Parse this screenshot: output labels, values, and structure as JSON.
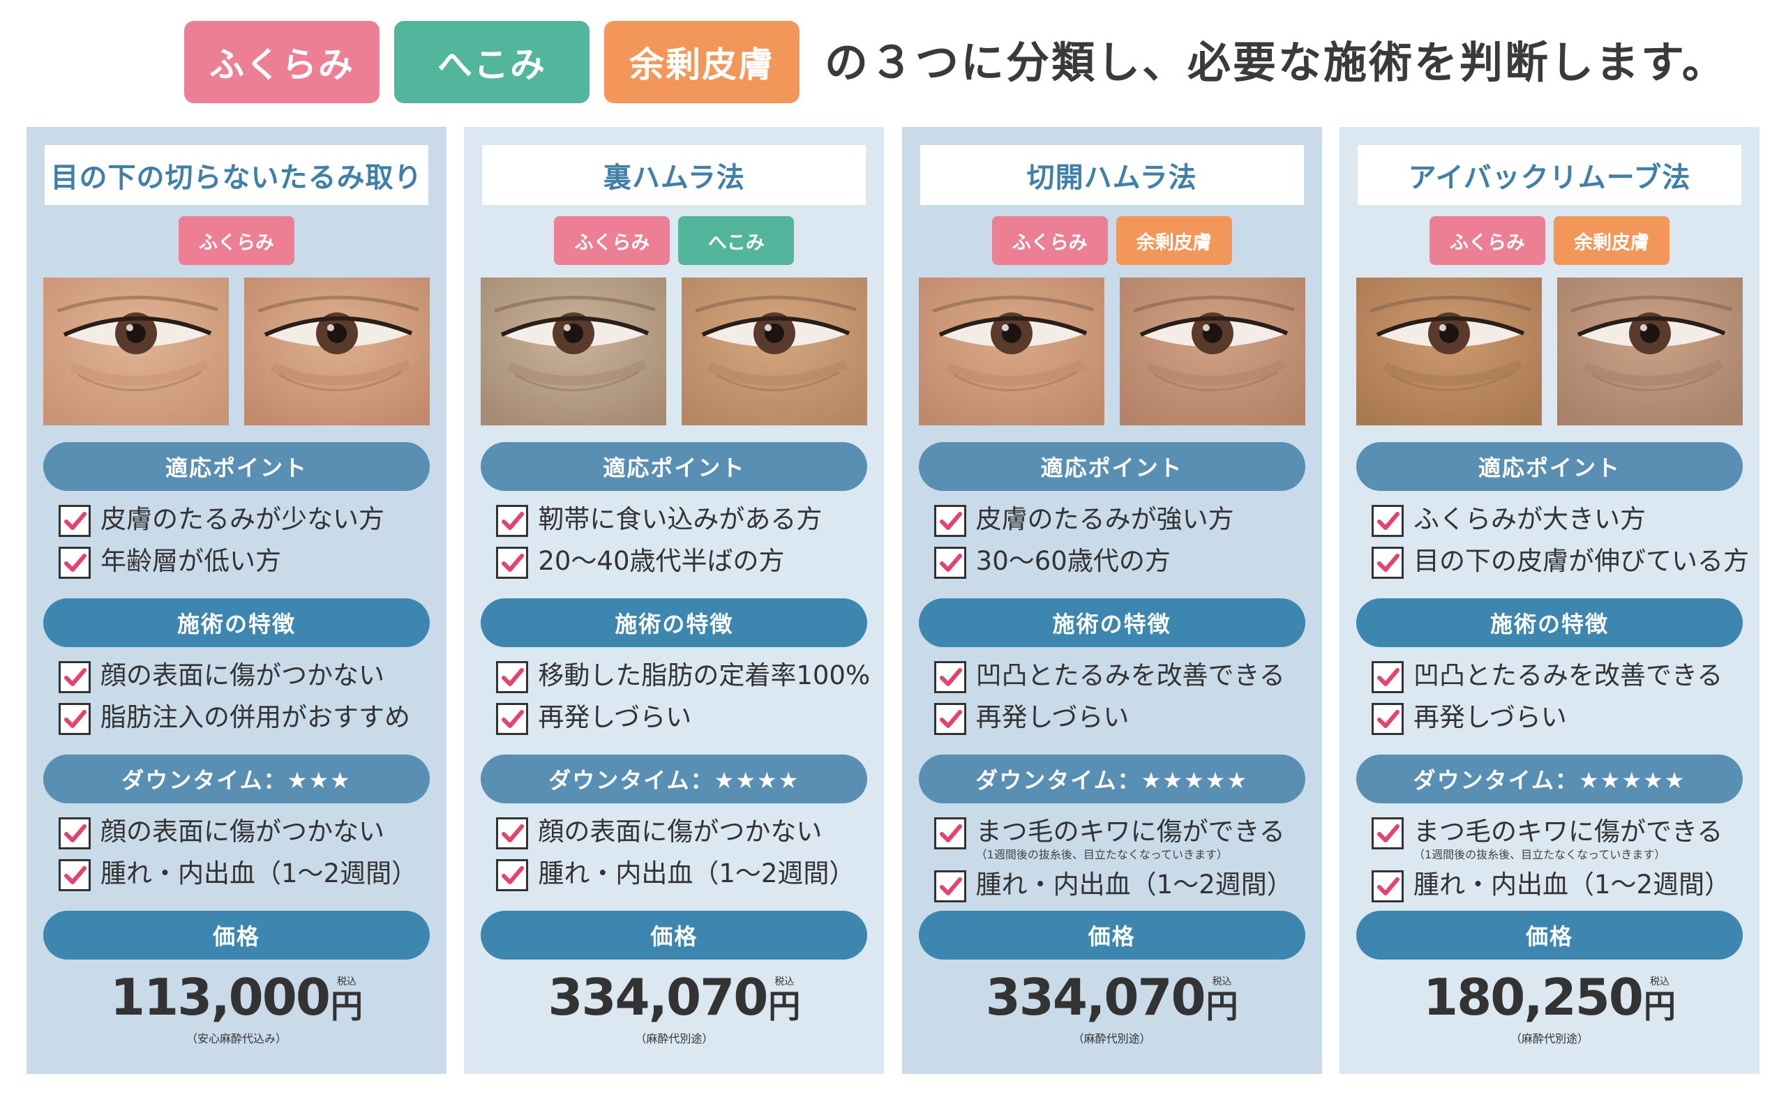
{
  "header": {
    "tags": [
      {
        "label": "ふくらみ",
        "color": "#ec7f94"
      },
      {
        "label": "へこみ",
        "color": "#53b59b"
      },
      {
        "label": "余剰皮膚",
        "color": "#f3965a"
      }
    ],
    "text": "の３つに分類し、必要な施術を判断します。"
  },
  "section_labels": {
    "indication": "適応ポイント",
    "features": "施術の特徴",
    "price": "価格",
    "tax_label": "税込",
    "yen": "円"
  },
  "cards": [
    {
      "title": "目の下の切らないたるみ取り",
      "tags": [
        "ふくらみ"
      ],
      "indications": [
        "皮膚のたるみが少ない方",
        "年齢層が低い方"
      ],
      "features": [
        "顔の表面に傷がつかない",
        "脂肪注入の併用がおすすめ"
      ],
      "downtime_label": "ダウンタイム：★★★",
      "downtime": [
        {
          "text": "顔の表面に傷がつかない",
          "note": ""
        },
        {
          "text": "腫れ・内出血（1〜2週間）",
          "note": ""
        }
      ],
      "price": "113,000",
      "price_note": "（安心麻酔代込み）"
    },
    {
      "title": "裏ハムラ法",
      "tags": [
        "ふくらみ",
        "へこみ"
      ],
      "indications": [
        "靭帯に食い込みがある方",
        "20〜40歳代半ばの方"
      ],
      "features": [
        "移動した脂肪の定着率100%",
        "再発しづらい"
      ],
      "downtime_label": "ダウンタイム：★★★★",
      "downtime": [
        {
          "text": "顔の表面に傷がつかない",
          "note": ""
        },
        {
          "text": "腫れ・内出血（1〜2週間）",
          "note": ""
        }
      ],
      "price": "334,070",
      "price_note": "（麻酔代別途）"
    },
    {
      "title": "切開ハムラ法",
      "tags": [
        "ふくらみ",
        "余剰皮膚"
      ],
      "indications": [
        "皮膚のたるみが強い方",
        "30〜60歳代の方"
      ],
      "features": [
        "凹凸とたるみを改善できる",
        "再発しづらい"
      ],
      "downtime_label": "ダウンタイム：★★★★★",
      "downtime": [
        {
          "text": "まつ毛のキワに傷ができる",
          "note": "（1週間後の抜糸後、目立たなくなっていきます）"
        },
        {
          "text": "腫れ・内出血（1〜2週間）",
          "note": ""
        }
      ],
      "price": "334,070",
      "price_note": "（麻酔代別途）"
    },
    {
      "title": "アイバックリムーブ法",
      "tags": [
        "ふくらみ",
        "余剰皮膚"
      ],
      "indications": [
        "ふくらみが大きい方",
        "目の下の皮膚が伸びている方"
      ],
      "features": [
        "凹凸とたるみを改善できる",
        "再発しづらい"
      ],
      "downtime_label": "ダウンタイム：★★★★★",
      "downtime": [
        {
          "text": "まつ毛のキワに傷ができる",
          "note": "（1週間後の抜糸後、目立たなくなっていきます）"
        },
        {
          "text": "腫れ・内出血（1〜2週間）",
          "note": ""
        }
      ],
      "price": "180,250",
      "price_note": "（麻酔代別途）"
    }
  ]
}
